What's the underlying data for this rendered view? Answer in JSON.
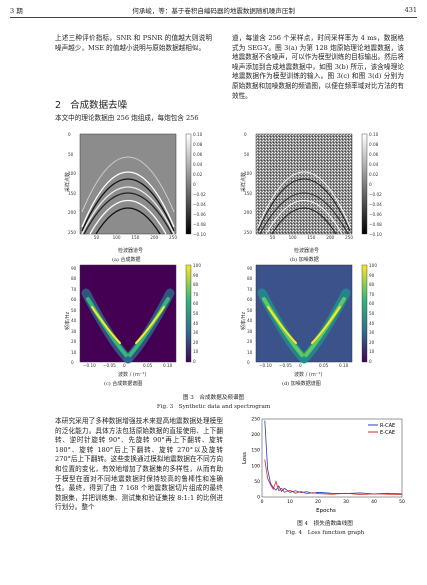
{
  "header": {
    "issue": "3 期",
    "authors_title": "何承峻，等：基于卷积自编码器的地震数据随机噪声压制",
    "page_number": "431"
  },
  "left_top": {
    "text": "上述三种评价指标，SNR 和 PSNR 的值越大则说明噪声越少，MSE 的值越小说明与原始数据越相似。"
  },
  "section": {
    "number": "2",
    "title": "合成数据去噪"
  },
  "left_intro": {
    "text": "本文中的理论数据由 256 炮组成，每炮包含 256"
  },
  "right_top": {
    "text": "道，每道含 256 个采样点，时间采样率为 4 ms，数据格式为 SEG-Y。图 3(a) 为第 128 炮原始理论地震数据，该地震数据不含噪声，可以作为模型训练的目标输出。然后将噪声添加到合成地震数据中，如图 3(b) 所示，该含噪理论地震数据作为模型训练的输入。图 3(c) 和图 3(d) 分别为原始数据和加噪数据的频谱图，以便在频率域对比方法的有效性。"
  },
  "figure3": {
    "panel_a": {
      "caption": "(a) 合成数据",
      "xlabel": "检波器道号",
      "ylabel": "采样点数"
    },
    "panel_b": {
      "caption": "(b) 加噪数据",
      "xlabel": "检波器道号",
      "ylabel": "采样点数"
    },
    "panel_c": {
      "caption": "(c) 合成数据谱图",
      "xlabel": "波数 / (m⁻¹)",
      "ylabel": "频率/Hz"
    },
    "panel_d": {
      "caption": "(d) 加噪数据谱图",
      "xlabel": "波数 / (m⁻¹)",
      "ylabel": "频率/Hz"
    },
    "seismic_x_ticks": [
      "50",
      "100",
      "150",
      "200",
      "250"
    ],
    "seismic_y_ticks": [
      "0",
      "50",
      "100",
      "150",
      "200",
      "250"
    ],
    "seismic_cbar_ticks": [
      "0.10",
      "0.08",
      "0.06",
      "0.04",
      "0.02",
      "0",
      "−0.02",
      "−0.04",
      "−0.06",
      "−0.08",
      "−0.10"
    ],
    "spec_x_ticks": [
      "−0.10",
      "−0.05",
      "0",
      "0.05",
      "0.10"
    ],
    "spec_y_ticks": [
      "0",
      "10",
      "20",
      "30",
      "40",
      "50",
      "60",
      "70",
      "80",
      "90"
    ],
    "spec_cbar_ticks": [
      "100",
      "90",
      "80",
      "70",
      "60",
      "50",
      "40",
      "30",
      "20",
      "10",
      "0"
    ],
    "caption_cn": "图 3　合成数据及频谱图",
    "caption_en": "Fig. 3　Synthetic data and spectrogram"
  },
  "left_bottom": {
    "text": "本研究采用了多种数据增强技术来提高地震数据处理模型的泛化能力。具体方法包括原始数据的直接使用、上下翻转、逆时针旋转 90°、先旋转 90°再上下翻转、旋转 180°、旋转 180°后上下翻转、旋转 270°以及旋转 270°后上下翻转。这些变换通过模拟地震数据在不同方向和位置的变化，有效地增加了数据集的多样性，从而有助于模型在面对不同地震数据时保持较高的鲁棒性和准确性。最终，得到了由 7 168 个地震数据切片组成的最终数据集，并把训练集、测试集和验证集按 8:1:1 的比例进行划分。整个"
  },
  "figure4": {
    "ylabel": "Loss",
    "xlabel": "Epochs",
    "legend": [
      "R-CAE",
      "E-CAE"
    ],
    "y_ticks": [
      "0",
      "50",
      "100",
      "150",
      "200",
      "250"
    ],
    "x_ticks": [
      "0",
      "10",
      "20",
      "30",
      "40",
      "50"
    ],
    "caption_cn": "图 4　损失函数曲线图",
    "caption_en": "Fig. 4　Loss function graph",
    "colors": {
      "r_cae": "#1f3fbf",
      "e_cae": "#d62728"
    }
  },
  "chart_data": {
    "type": "line",
    "xlabel": "Epochs",
    "ylabel": "Loss",
    "xlim": [
      0,
      50
    ],
    "ylim": [
      0,
      250
    ],
    "legend_position": "top-right",
    "series": [
      {
        "name": "R-CAE",
        "x": [
          1,
          2,
          3,
          4,
          5,
          6,
          7,
          8,
          10,
          12,
          14,
          16,
          18,
          20,
          25,
          30,
          35,
          40,
          45,
          50
        ],
        "values": [
          245,
          90,
          45,
          30,
          22,
          35,
          18,
          28,
          15,
          20,
          14,
          17,
          12,
          15,
          12,
          11,
          13,
          10,
          12,
          10
        ]
      },
      {
        "name": "E-CAE",
        "x": [
          1,
          2,
          3,
          4,
          5,
          6,
          7,
          8,
          10,
          12,
          14,
          16,
          18,
          20,
          25,
          30,
          35,
          40,
          45,
          50
        ],
        "values": [
          120,
          60,
          40,
          25,
          50,
          20,
          28,
          15,
          22,
          12,
          18,
          10,
          14,
          11,
          9,
          12,
          8,
          10,
          9,
          8
        ]
      }
    ]
  }
}
